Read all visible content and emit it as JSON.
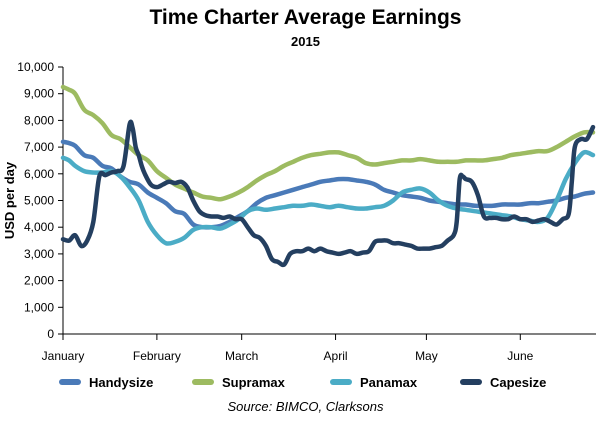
{
  "chart_data": {
    "type": "line",
    "title": "Time Charter Average Earnings",
    "subtitle": "2015",
    "ylabel": "USD per day",
    "xlabel": "",
    "ylim": [
      0,
      10000
    ],
    "yticks": [
      0,
      1000,
      2000,
      3000,
      4000,
      5000,
      6000,
      7000,
      8000,
      9000,
      10000
    ],
    "ytick_labels": [
      "0",
      "1,000",
      "2,000",
      "3,000",
      "4,000",
      "5,000",
      "6,000",
      "7,000",
      "8,000",
      "9,000",
      "10,000"
    ],
    "x_unit": "day of 2015",
    "xlim": [
      1,
      177
    ],
    "xticks": [
      1,
      32,
      60,
      91,
      121,
      152
    ],
    "xtick_labels": [
      "January",
      "February",
      "March",
      "April",
      "May",
      "June"
    ],
    "grid": false,
    "source": "Source: BIMCO, Clarksons",
    "series": [
      {
        "name": "Handysize",
        "color": "#4a7ab8",
        "x": [
          1,
          3,
          5,
          8,
          11,
          14,
          17,
          20,
          23,
          26,
          29,
          32,
          35,
          38,
          41,
          44,
          47,
          50,
          53,
          56,
          59,
          62,
          65,
          68,
          71,
          74,
          77,
          80,
          83,
          86,
          89,
          92,
          95,
          98,
          101,
          104,
          107,
          110,
          113,
          116,
          119,
          122,
          125,
          128,
          131,
          134,
          137,
          140,
          143,
          146,
          149,
          152,
          155,
          158,
          161,
          164,
          167,
          170,
          173,
          176
        ],
        "y": [
          7200,
          7150,
          7050,
          6700,
          6600,
          6300,
          6200,
          5900,
          5700,
          5600,
          5300,
          5100,
          4900,
          4600,
          4500,
          4100,
          4000,
          4000,
          4050,
          4200,
          4400,
          4600,
          4900,
          5100,
          5200,
          5300,
          5400,
          5500,
          5600,
          5700,
          5750,
          5800,
          5800,
          5750,
          5700,
          5600,
          5400,
          5300,
          5200,
          5150,
          5100,
          5000,
          4950,
          4900,
          4850,
          4850,
          4800,
          4800,
          4800,
          4850,
          4850,
          4850,
          4900,
          4900,
          4950,
          5000,
          5100,
          5150,
          5250,
          5300
        ]
      },
      {
        "name": "Supramax",
        "color": "#9dbb61",
        "x": [
          1,
          3,
          5,
          8,
          11,
          14,
          17,
          20,
          23,
          26,
          29,
          32,
          35,
          38,
          41,
          44,
          47,
          50,
          53,
          56,
          59,
          62,
          65,
          68,
          71,
          74,
          77,
          80,
          83,
          86,
          89,
          92,
          95,
          98,
          101,
          104,
          107,
          110,
          113,
          116,
          119,
          122,
          125,
          128,
          131,
          134,
          137,
          140,
          143,
          146,
          149,
          152,
          155,
          158,
          161,
          164,
          167,
          170,
          173,
          176
        ],
        "y": [
          9250,
          9150,
          9000,
          8400,
          8200,
          7900,
          7450,
          7300,
          7000,
          6700,
          6500,
          6100,
          5850,
          5600,
          5450,
          5300,
          5150,
          5100,
          5050,
          5150,
          5300,
          5500,
          5750,
          5950,
          6100,
          6300,
          6450,
          6600,
          6700,
          6750,
          6800,
          6800,
          6700,
          6600,
          6400,
          6350,
          6400,
          6450,
          6500,
          6500,
          6550,
          6500,
          6450,
          6450,
          6450,
          6500,
          6500,
          6500,
          6550,
          6600,
          6700,
          6750,
          6800,
          6850,
          6850,
          7000,
          7200,
          7400,
          7550,
          7550
        ]
      },
      {
        "name": "Panamax",
        "color": "#4bacc6",
        "x": [
          1,
          3,
          5,
          8,
          11,
          14,
          17,
          20,
          23,
          26,
          29,
          32,
          35,
          38,
          41,
          44,
          47,
          50,
          53,
          56,
          59,
          62,
          65,
          68,
          71,
          74,
          77,
          80,
          83,
          86,
          89,
          92,
          95,
          98,
          101,
          104,
          107,
          110,
          113,
          116,
          119,
          122,
          125,
          128,
          131,
          134,
          137,
          140,
          143,
          146,
          149,
          152,
          155,
          158,
          161,
          164,
          167,
          170,
          173,
          176
        ],
        "y": [
          6600,
          6500,
          6300,
          6100,
          6050,
          6050,
          6100,
          5900,
          5500,
          5000,
          4200,
          3700,
          3400,
          3450,
          3600,
          3900,
          4000,
          4000,
          3950,
          4100,
          4300,
          4600,
          4700,
          4650,
          4700,
          4750,
          4800,
          4800,
          4850,
          4800,
          4750,
          4800,
          4750,
          4700,
          4700,
          4750,
          4800,
          5000,
          5300,
          5400,
          5450,
          5300,
          5000,
          4800,
          4700,
          4650,
          4600,
          4550,
          4500,
          4450,
          4400,
          4300,
          4250,
          4200,
          4350,
          5000,
          5800,
          6400,
          6800,
          6700
        ]
      },
      {
        "name": "Capesize",
        "color": "#243f60",
        "x": [
          1,
          3,
          5,
          7,
          9,
          11,
          13,
          15,
          17,
          19,
          21,
          23,
          24,
          25,
          26,
          27,
          28,
          30,
          32,
          34,
          36,
          38,
          40,
          42,
          44,
          46,
          48,
          50,
          52,
          54,
          56,
          58,
          60,
          62,
          64,
          66,
          68,
          70,
          72,
          74,
          76,
          78,
          80,
          82,
          84,
          86,
          88,
          90,
          92,
          94,
          96,
          98,
          100,
          102,
          104,
          106,
          108,
          110,
          112,
          114,
          116,
          118,
          120,
          122,
          124,
          126,
          128,
          130,
          131,
          132,
          133,
          134,
          136,
          138,
          140,
          142,
          144,
          146,
          148,
          150,
          152,
          154,
          156,
          158,
          160,
          162,
          164,
          166,
          168,
          169,
          170,
          172,
          174,
          176
        ],
        "y": [
          3550,
          3500,
          3700,
          3300,
          3500,
          4200,
          5900,
          5950,
          6050,
          6100,
          6300,
          7850,
          7700,
          7000,
          6700,
          6300,
          6000,
          5600,
          5500,
          5600,
          5700,
          5650,
          5700,
          5500,
          5000,
          4600,
          4450,
          4400,
          4400,
          4350,
          4400,
          4300,
          4300,
          4000,
          3700,
          3600,
          3300,
          2800,
          2700,
          2600,
          3000,
          3100,
          3100,
          3200,
          3100,
          3200,
          3100,
          3050,
          3000,
          3050,
          3100,
          3000,
          3050,
          3100,
          3450,
          3500,
          3500,
          3400,
          3400,
          3350,
          3300,
          3200,
          3200,
          3200,
          3250,
          3300,
          3500,
          3700,
          4200,
          5800,
          5900,
          5800,
          5700,
          5200,
          4400,
          4350,
          4350,
          4300,
          4300,
          4400,
          4300,
          4300,
          4200,
          4250,
          4300,
          4200,
          4100,
          4300,
          4500,
          5700,
          7000,
          7300,
          7300,
          7750
        ]
      }
    ]
  }
}
